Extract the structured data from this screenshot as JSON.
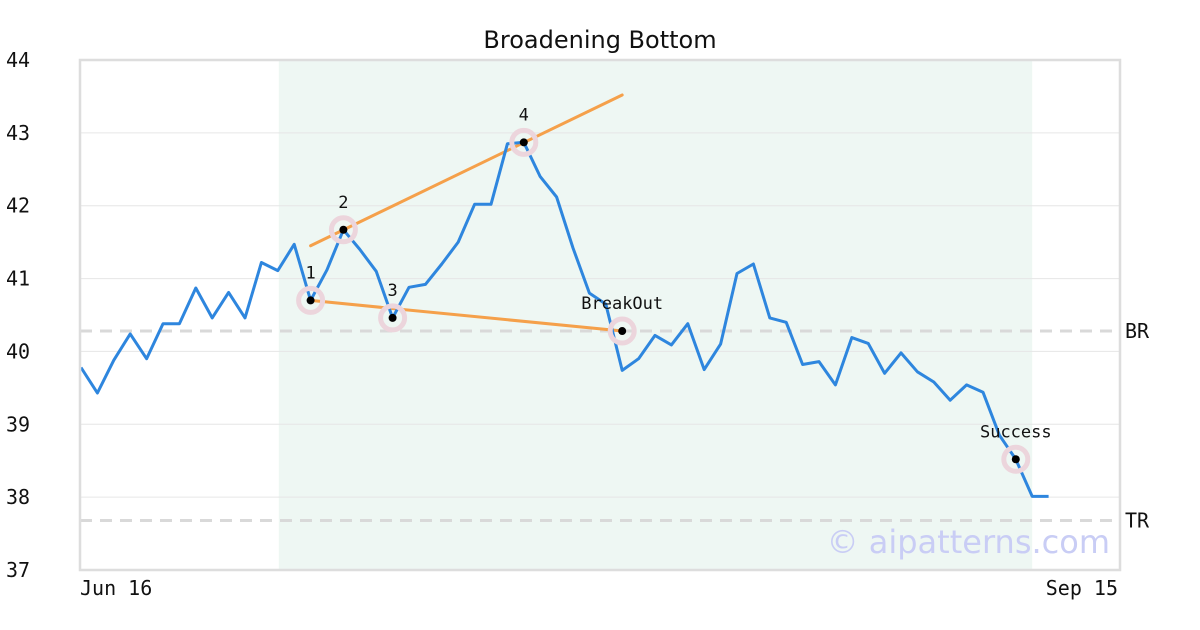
{
  "chart_data": {
    "type": "line",
    "title": "Broadening Bottom",
    "xlabel": "",
    "ylabel": "",
    "ylim": [
      37,
      44
    ],
    "yticks": [
      37,
      38,
      39,
      40,
      41,
      42,
      43,
      44
    ],
    "x_tick_labels": [
      {
        "index": 0,
        "label": "Jun 16"
      },
      {
        "index": 59,
        "label": "Sep 15"
      }
    ],
    "grid": true,
    "legend": "none",
    "colors": {
      "price": "#2e86de",
      "trendline": "#f5a04a",
      "highlight_band": "#eef7f3",
      "reference": "#d9d9d9",
      "marker_halo": "#ecd5dc",
      "marker": "#000000",
      "frame": "#dddddd"
    },
    "highlight_range": {
      "start_index": 12,
      "end_index": 58
    },
    "series": [
      {
        "values": [
          39.78,
          39.43,
          39.88,
          40.24,
          39.9,
          40.38,
          40.38,
          40.87,
          40.46,
          40.81,
          40.46,
          41.22,
          41.11,
          41.47,
          40.7,
          41.12,
          41.67,
          41.4,
          41.1,
          40.46,
          40.88,
          40.92,
          41.2,
          41.5,
          42.02,
          42.02,
          42.85,
          42.87,
          42.4,
          42.12,
          41.42,
          40.8,
          40.65,
          39.74,
          39.9,
          40.22,
          40.09,
          40.38,
          39.75,
          40.1,
          41.07,
          41.2,
          40.46,
          40.4,
          39.82,
          39.86,
          39.54,
          40.19,
          40.11,
          39.7,
          39.98,
          39.72,
          39.58,
          39.33,
          39.54,
          39.44,
          38.85,
          38.52,
          38.01,
          38.01
        ]
      }
    ],
    "trendlines": [
      {
        "from": [
          14,
          41.45
        ],
        "to": [
          33,
          43.52
        ]
      },
      {
        "from": [
          14,
          40.7
        ],
        "to": [
          33,
          40.28
        ]
      }
    ],
    "reference_lines": [
      {
        "label": "BR",
        "y": 40.28
      },
      {
        "label": "TR",
        "y": 37.68
      }
    ],
    "points": [
      {
        "label": "1",
        "x": 14,
        "y": 40.7
      },
      {
        "label": "2",
        "x": 16,
        "y": 41.67
      },
      {
        "label": "3",
        "x": 19,
        "y": 40.46
      },
      {
        "label": "4",
        "x": 27,
        "y": 42.87
      },
      {
        "label": "BreakOut",
        "x": 33,
        "y": 40.28
      },
      {
        "label": "Success",
        "x": 57,
        "y": 38.52
      }
    ],
    "watermark": "© aipatterns.com"
  }
}
